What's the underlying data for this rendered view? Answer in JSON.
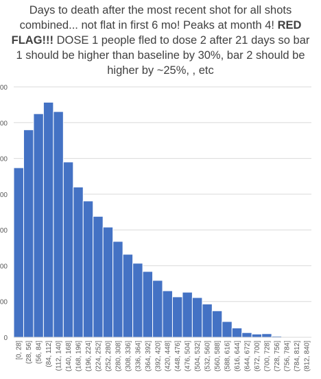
{
  "title": {
    "part1": "Days to death after the most recent shot for all shots combined... not flat in first 6 mo! Peaks at month 4! ",
    "bold": "RED FLAG!!!",
    "part2": " DOSE 1 people fled to dose 2 after 21 days so bar 1 should be higher than baseline by 30%, bar 2 should be higher by ~25%, , etc"
  },
  "chart_data": {
    "type": "bar",
    "title": "Days to death after the most recent shot for all shots combined... not flat in first 6 mo! Peaks at month 4! RED FLAG!!! DOSE 1 people fled to dose 2 after 21 days so bar 1 should be higher than baseline by 30%, bar 2 should be higher by ~25%, , etc",
    "xlabel": "",
    "ylabel": "",
    "ytick_labels": [
      "0",
      "00",
      "00",
      "00",
      "00",
      "00",
      "00",
      "00"
    ],
    "ylim": [
      0,
      700
    ],
    "grid": true,
    "bar_color": "#4472C4",
    "categories": [
      "[0, 28]",
      "(28, 56]",
      "(56, 84]",
      "(84, 112]",
      "(112, 140]",
      "(140, 168]",
      "(168, 196]",
      "(196, 224]",
      "(224, 252]",
      "(252, 280]",
      "(280, 308]",
      "(308, 336]",
      "(336, 364]",
      "(364, 392]",
      "(392, 420]",
      "(420, 448]",
      "(448, 476]",
      "(476, 504]",
      "(504, 532]",
      "(532, 560]",
      "(560, 588]",
      "(588, 616]",
      "(616, 644]",
      "(644, 672]",
      "(672, 700]",
      "(700, 728]",
      "(728, 756]",
      "(756, 784]",
      "(784, 812]",
      "(812, 840]"
    ],
    "values": [
      474,
      580,
      625,
      657,
      631,
      490,
      420,
      381,
      338,
      308,
      268,
      232,
      207,
      184,
      159,
      130,
      113,
      126,
      111,
      93,
      74,
      44,
      26,
      13,
      9,
      10,
      3,
      0,
      0,
      0
    ]
  }
}
